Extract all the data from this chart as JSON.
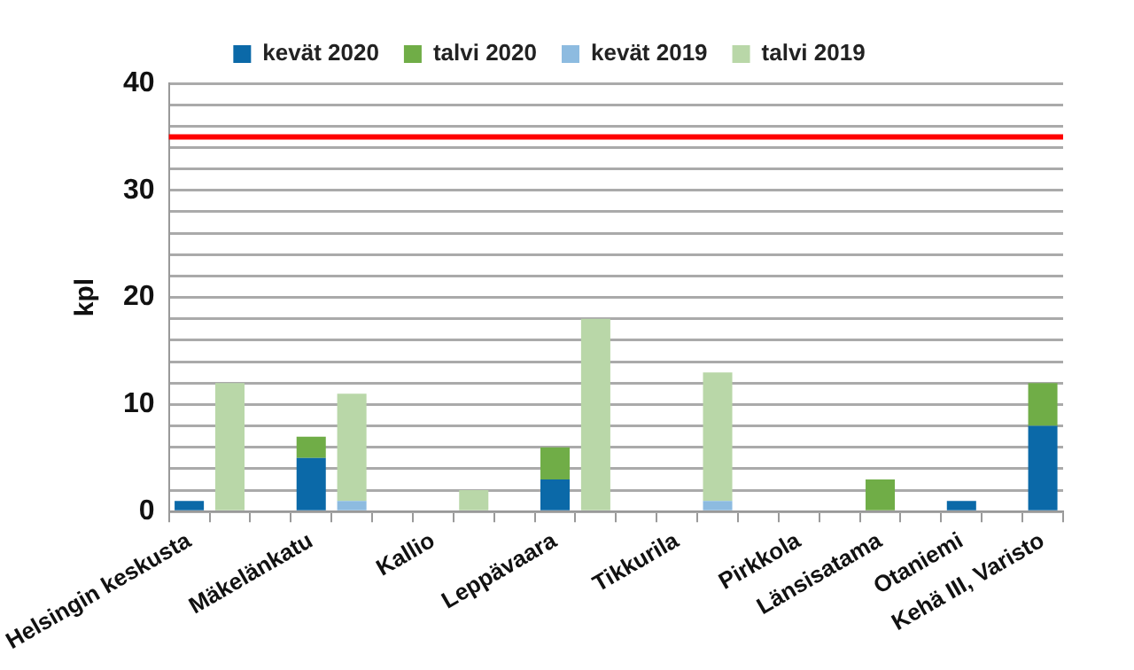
{
  "chart_data": {
    "type": "bar",
    "stacked": true,
    "ylabel": "kpl",
    "categories": [
      "Helsingin keskusta",
      null,
      null,
      "Mäkelänkatu",
      null,
      null,
      "Kallio",
      null,
      null,
      "Leppävaara",
      null,
      null,
      "Tikkurila",
      null,
      null,
      "Pirkkola",
      null,
      "Länsisatama",
      null,
      "Otaniemi",
      null,
      "Kehä III, Varisto"
    ],
    "series": [
      {
        "name": "kevät 2020",
        "color": "#0b69a8",
        "values": [
          1,
          null,
          null,
          5,
          null,
          null,
          null,
          null,
          null,
          3,
          null,
          null,
          null,
          null,
          null,
          null,
          null,
          null,
          null,
          1,
          null,
          8
        ]
      },
      {
        "name": "talvi 2020",
        "color": "#70ad47",
        "values": [
          null,
          null,
          null,
          2,
          null,
          null,
          null,
          null,
          null,
          3,
          null,
          null,
          null,
          null,
          null,
          null,
          null,
          3,
          null,
          null,
          null,
          4
        ]
      },
      {
        "name": "kevät 2019",
        "color": "#8dbbe0",
        "values": [
          null,
          null,
          null,
          null,
          1,
          null,
          null,
          null,
          null,
          null,
          null,
          null,
          null,
          1,
          null,
          null,
          null,
          null,
          null,
          null,
          null,
          null
        ]
      },
      {
        "name": "talvi 2019",
        "color": "#b9d7a8",
        "values": [
          null,
          12,
          null,
          null,
          10,
          null,
          null,
          2,
          null,
          null,
          18,
          null,
          null,
          12,
          null,
          null,
          null,
          null,
          null,
          null,
          null,
          null
        ]
      }
    ],
    "ylim": [
      0,
      40
    ],
    "yticks": [
      0,
      {
        "value": 2,
        "label": null
      },
      {
        "value": 4,
        "label": null
      },
      {
        "value": 6,
        "label": null
      },
      {
        "value": 8,
        "label": null
      },
      10,
      {
        "value": 12,
        "label": null
      },
      {
        "value": 14,
        "label": null
      },
      {
        "value": 16,
        "label": null
      },
      {
        "value": 18,
        "label": null
      },
      20,
      {
        "value": 22,
        "label": null
      },
      {
        "value": 24,
        "label": null
      },
      {
        "value": 26,
        "label": null
      },
      {
        "value": 28,
        "label": null
      },
      30,
      {
        "value": 32,
        "label": null
      },
      {
        "value": 34,
        "label": null
      },
      {
        "value": 36,
        "label": null
      },
      {
        "value": 38,
        "label": null
      },
      40
    ],
    "grid": "y",
    "legend": "top",
    "ref_lines": [
      {
        "axis": "y",
        "value": 35,
        "color": "#ff0000"
      }
    ]
  }
}
